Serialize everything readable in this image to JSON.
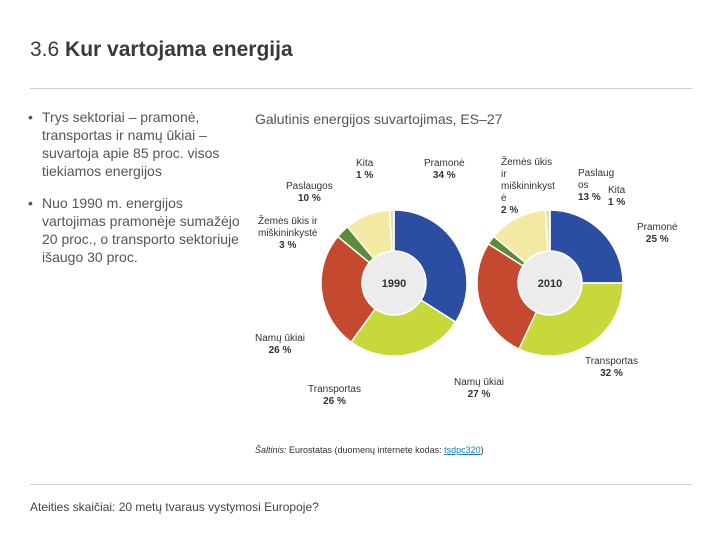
{
  "slide": {
    "number": "3.6",
    "title": "Kur vartojama energija"
  },
  "bullets": [
    "Trys sektoriai – pramonė, transportas ir namų ūkiai – suvartoja apie 85 proc. visos tiekiamos energijos",
    "Nuo 1990 m. energijos vartojimas pramonėje sumažėjo 20 proc., o transporto sektoriuje išaugo 30 proc."
  ],
  "chart_data": {
    "type": "pie",
    "title": "Galutinis energijos suvartojimas, ES–27",
    "charts": [
      {
        "year": "1990",
        "slices": [
          {
            "name": "Pramonė",
            "label_text": "Pramonė",
            "pct_text": "34 %",
            "value": 34,
            "color": "#2b4ea3"
          },
          {
            "name": "Transportas",
            "label_text": "Transportas",
            "pct_text": "26 %",
            "value": 26,
            "color": "#c6d83a"
          },
          {
            "name": "Namų ūkiai",
            "label_text": "Namų ūkiai",
            "pct_text": "26 %",
            "value": 26,
            "color": "#c4492f"
          },
          {
            "name": "Žemės ūkis ir miškininkystė",
            "label_text": "Žemės ūkis ir miškininkystė",
            "pct_text": "3 %",
            "value": 3,
            "color": "#5a8c3a"
          },
          {
            "name": "Paslaugos",
            "label_text": "Paslaugos",
            "pct_text": "10 %",
            "value": 10,
            "color": "#f3e9a2"
          },
          {
            "name": "Kita",
            "label_text": "Kita",
            "pct_text": "1 %",
            "value": 1,
            "color": "#e4e0b0"
          }
        ]
      },
      {
        "year": "2010",
        "slices": [
          {
            "name": "Pramonė",
            "label_text": "Pramonė",
            "pct_text": "25 %",
            "value": 25,
            "color": "#2b4ea3"
          },
          {
            "name": "Transportas",
            "label_text": "Transportas",
            "pct_text": "32 %",
            "value": 32,
            "color": "#c6d83a"
          },
          {
            "name": "Namų ūkiai",
            "label_text": "Namų ūkiai",
            "pct_text": "27 %",
            "value": 27,
            "color": "#c4492f"
          },
          {
            "name": "Žemės ūkis ir miškininkystė",
            "label_text": "Žemės ūkis ir miškininkystė",
            "pct_text": "2 %",
            "value": 2,
            "color": "#5a8c3a"
          },
          {
            "name": "Paslaugos",
            "label_text": "Paslaugos",
            "pct_text": "13 %",
            "value": 13,
            "color": "#f3e9a2"
          },
          {
            "name": "Kita",
            "label_text": "Kita",
            "pct_text": "1 %",
            "value": 1,
            "color": "#e4e0b0"
          }
        ]
      }
    ]
  },
  "labels": {
    "y1990": {
      "kita": {
        "a": "Kita",
        "p": "1 %"
      },
      "pramone": {
        "a": "Pramonė",
        "p": "34 %"
      },
      "paslaugos": {
        "a": "Paslaugos",
        "p": "10 %"
      },
      "zemes": {
        "a": "Žemės ūkis ir",
        "b": "miškininkystė",
        "p": "3 %"
      },
      "namu": {
        "a": "Namų ūkiai",
        "p": "26 %"
      },
      "transportas": {
        "a": "Transportas",
        "p": "26 %"
      }
    },
    "y2010": {
      "zemes": {
        "a": "Žemės ūkis",
        "b": "ir",
        "c": "miškininkyst",
        "d": "ė",
        "p": "2 %"
      },
      "paslaugos": {
        "a": "Paslaug",
        "b": "os",
        "p": "13 %"
      },
      "kita": {
        "a": "Kita",
        "p": "1 %"
      },
      "pramone": {
        "a": "Pramonė",
        "p": "25 %"
      },
      "namu": {
        "a": "Namų ūkiai",
        "p": "27 %"
      },
      "transportas": {
        "a": "Transportas",
        "p": "32 %"
      }
    }
  },
  "source": {
    "label": "Šaltinis:",
    "text": " Eurostatas (duomenų internete kodas: ",
    "link": "tsdpc320",
    "close": ")"
  },
  "footer": "Ateities skaičiai: 20 metų tvaraus vystymosi Europoje?"
}
